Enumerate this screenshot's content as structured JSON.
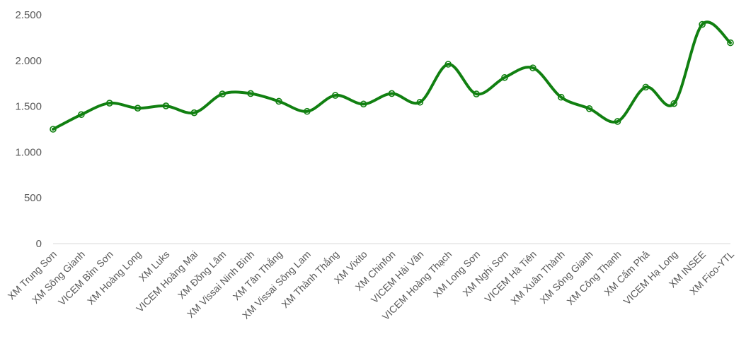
{
  "chart_data": {
    "type": "line",
    "title": "",
    "xlabel": "",
    "ylabel": "",
    "ylim": [
      0,
      2500
    ],
    "y_ticks": [
      0,
      500,
      1000,
      1500,
      2000,
      2500
    ],
    "y_tick_labels": [
      "0",
      "500",
      "1.000",
      "1.500",
      "2.000",
      "2.500"
    ],
    "grid": false,
    "smooth": true,
    "line_color": "#118011",
    "marker_color": "#118011",
    "categories": [
      "XM Trung Sơn",
      "XM Sông Gianh",
      "VICEM Bỉm Sơn",
      "XM Hoàng Long",
      "XM Luks",
      "VICEM Hoàng Mai",
      "XM Đồng Lâm",
      "XM Vissai Ninh Bình",
      "XM Tân Thắng",
      "XM Vissai Sông Lam",
      "XM Thành Thắng",
      "XM Vixito",
      "XM Chinfon",
      "VICEM Hải Vân",
      "VICEM Hoàng Thạch",
      "XM Long Sơn",
      "XM Nghi Sơn",
      "VICEM Hà Tiên",
      "XM Xuân Thành",
      "XM Sông Gianh",
      "XM Công Thanh",
      "XM Cẩm Phả",
      "VICEM Hạ Long",
      "XM INSEE",
      "XM Fico-YTL"
    ],
    "series": [
      {
        "values": [
          1250,
          1410,
          1535,
          1480,
          1505,
          1430,
          1635,
          1640,
          1555,
          1445,
          1620,
          1525,
          1640,
          1545,
          1960,
          1635,
          1815,
          1920,
          1600,
          1475,
          1335,
          1710,
          1530,
          2395,
          2195
        ]
      }
    ]
  }
}
